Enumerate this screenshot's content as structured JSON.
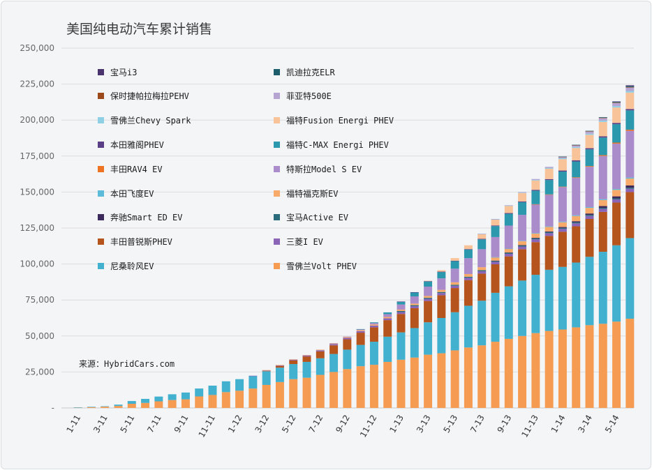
{
  "chart_data": {
    "type": "bar",
    "stacked": true,
    "title": "美国纯电动汽车累计销售",
    "source": "来源：HybridCars.com",
    "xlabel": "",
    "ylabel": "",
    "ylim": [
      0,
      250000
    ],
    "yticks": [
      "-",
      "25,000",
      "50,000",
      "75,000",
      "100,000",
      "125,000",
      "150,000",
      "175,000",
      "200,000",
      "225,000",
      "250,000"
    ],
    "grid": true,
    "legend_position": "top-left",
    "categories": [
      "1-11",
      "2-11",
      "3-11",
      "4-11",
      "5-11",
      "6-11",
      "7-11",
      "8-11",
      "9-11",
      "10-11",
      "11-11",
      "12-11",
      "1-12",
      "2-12",
      "3-12",
      "4-12",
      "5-12",
      "6-12",
      "7-12",
      "8-12",
      "9-12",
      "10-12",
      "11-12",
      "12-12",
      "1-13",
      "2-13",
      "3-13",
      "4-13",
      "5-13",
      "6-13",
      "7-13",
      "8-13",
      "9-13",
      "10-13",
      "11-13",
      "12-13",
      "1-14",
      "2-14",
      "3-14",
      "4-14",
      "5-14",
      "6-14"
    ],
    "xtick_labels": [
      "1-11",
      "3-11",
      "5-11",
      "7-11",
      "9-11",
      "11-11",
      "1-12",
      "3-12",
      "5-12",
      "7-12",
      "9-12",
      "11-12",
      "1-13",
      "3-13",
      "5-13",
      "7-13",
      "9-13",
      "11-13",
      "1-14",
      "3-14",
      "5-14"
    ],
    "series": [
      {
        "name": "雪佛兰Volt PHEV",
        "color": "#f59b52",
        "values": [
          300,
          600,
          900,
          1400,
          2900,
          3500,
          4600,
          5500,
          6000,
          8000,
          9000,
          11000,
          12000,
          13500,
          16000,
          18000,
          20000,
          21000,
          23000,
          25000,
          27000,
          29000,
          30000,
          32000,
          33500,
          35000,
          37000,
          38000,
          40000,
          42000,
          43500,
          46000,
          48000,
          50000,
          52000,
          53500,
          54500,
          56000,
          57500,
          58500,
          60000,
          62000
        ]
      },
      {
        "name": "尼桑聆风EV",
        "color": "#42b0cf",
        "values": [
          100,
          200,
          300,
          900,
          1900,
          2800,
          3300,
          4000,
          4700,
          5500,
          6500,
          7500,
          8000,
          8700,
          9500,
          10000,
          10500,
          11000,
          11500,
          12500,
          13500,
          14800,
          16000,
          17500,
          19000,
          20500,
          22500,
          24500,
          26500,
          29000,
          31000,
          34000,
          36500,
          38500,
          40500,
          42500,
          43500,
          45000,
          47500,
          50000,
          53000,
          56000
        ]
      },
      {
        "name": "丰田普锐斯PHEV",
        "color": "#b5541c",
        "values": [
          0,
          0,
          0,
          0,
          0,
          0,
          0,
          0,
          0,
          0,
          0,
          0,
          0,
          0,
          300,
          1200,
          2500,
          3800,
          4800,
          6000,
          7200,
          8500,
          10000,
          11500,
          12800,
          13800,
          14800,
          15800,
          16800,
          17800,
          18800,
          19800,
          20800,
          21800,
          22700,
          23500,
          24400,
          25200,
          26300,
          27700,
          29700,
          32000
        ]
      },
      {
        "name": "三菱I EV",
        "color": "#8a64b6",
        "values": [
          0,
          0,
          0,
          0,
          0,
          0,
          0,
          0,
          0,
          0,
          0,
          0,
          0,
          200,
          400,
          500,
          600,
          700,
          800,
          900,
          1000,
          1100,
          1200,
          1300,
          1350,
          1400,
          1500,
          1550,
          1600,
          1650,
          1700,
          1750,
          1800,
          1850,
          1900,
          1950,
          2000,
          2050,
          2100,
          2150,
          2200,
          2250
        ]
      },
      {
        "name": "宝马Active EV",
        "color": "#2a6b7c",
        "values": [
          0,
          0,
          0,
          0,
          0,
          0,
          0,
          0,
          0,
          0,
          0,
          0,
          0,
          0,
          0,
          0,
          0,
          0,
          0,
          0,
          0,
          0,
          0,
          0,
          700,
          700,
          700,
          700,
          700,
          700,
          700,
          700,
          700,
          700,
          700,
          700,
          700,
          700,
          700,
          700,
          700,
          700
        ]
      },
      {
        "name": "奔驰Smart ED EV",
        "color": "#3d2a5c",
        "values": [
          0,
          0,
          0,
          0,
          0,
          0,
          0,
          0,
          0,
          0,
          0,
          0,
          0,
          0,
          0,
          0,
          0,
          0,
          0,
          0,
          0,
          0,
          0,
          0,
          0,
          0,
          0,
          0,
          0,
          0,
          0,
          100,
          200,
          300,
          400,
          500,
          600,
          800,
          1000,
          1200,
          1400,
          1600
        ]
      },
      {
        "name": "福特福克斯EV",
        "color": "#f7aa6a",
        "values": [
          0,
          0,
          0,
          0,
          0,
          0,
          0,
          0,
          0,
          0,
          0,
          0,
          0,
          0,
          100,
          150,
          200,
          300,
          400,
          500,
          600,
          700,
          800,
          900,
          1000,
          1100,
          1300,
          1500,
          1700,
          1900,
          2100,
          2300,
          2500,
          2700,
          2900,
          3100,
          3300,
          3600,
          3900,
          4200,
          4500,
          4800
        ]
      },
      {
        "name": "本田飞度EV",
        "color": "#5bbbd9",
        "values": [
          0,
          0,
          0,
          0,
          0,
          0,
          0,
          0,
          0,
          0,
          0,
          0,
          0,
          0,
          0,
          0,
          0,
          0,
          0,
          0,
          0,
          0,
          0,
          0,
          0,
          0,
          0,
          0,
          0,
          0,
          0,
          100,
          200,
          300,
          350,
          400,
          450,
          500,
          550,
          600,
          650,
          700
        ]
      },
      {
        "name": "特斯拉Model S EV",
        "color": "#a98cc9",
        "values": [
          0,
          0,
          0,
          0,
          0,
          0,
          0,
          0,
          0,
          0,
          0,
          0,
          0,
          0,
          0,
          0,
          0,
          0,
          0,
          100,
          300,
          600,
          1000,
          2000,
          3500,
          5000,
          6500,
          8000,
          9500,
          11000,
          12500,
          14000,
          16000,
          18000,
          20000,
          22000,
          24000,
          26000,
          28000,
          30000,
          31500,
          32500
        ]
      },
      {
        "name": "丰田RAV4 EV",
        "color": "#ee7322",
        "values": [
          0,
          0,
          0,
          0,
          0,
          0,
          0,
          0,
          0,
          0,
          0,
          0,
          0,
          0,
          0,
          0,
          0,
          0,
          0,
          0,
          0,
          0,
          0,
          0,
          0,
          0,
          0,
          0,
          0,
          0,
          0,
          0,
          0,
          0,
          100,
          200,
          300,
          400,
          500,
          600,
          700,
          800
        ]
      },
      {
        "name": "福特C-MAX Energi PHEV",
        "color": "#2b98ad",
        "values": [
          0,
          0,
          0,
          0,
          0,
          0,
          0,
          0,
          0,
          0,
          0,
          0,
          0,
          0,
          0,
          0,
          0,
          0,
          0,
          0,
          0,
          100,
          500,
          1200,
          2000,
          2800,
          3600,
          4400,
          5200,
          6000,
          6800,
          7600,
          8200,
          8800,
          9400,
          10000,
          10500,
          11000,
          11600,
          12200,
          12800,
          13400
        ]
      },
      {
        "name": "本田雅阁PHEV",
        "color": "#5a3f86",
        "values": [
          0,
          0,
          0,
          0,
          0,
          0,
          0,
          0,
          0,
          0,
          0,
          0,
          0,
          0,
          0,
          0,
          0,
          0,
          0,
          0,
          0,
          0,
          0,
          0,
          100,
          150,
          200,
          250,
          300,
          350,
          400,
          450,
          500,
          550,
          600,
          650,
          700,
          750,
          800,
          850,
          900,
          950
        ]
      },
      {
        "name": "福特Fusion Energi PHEV",
        "color": "#f9c39a",
        "values": [
          0,
          0,
          0,
          0,
          0,
          0,
          0,
          0,
          0,
          0,
          0,
          0,
          0,
          0,
          0,
          0,
          0,
          0,
          0,
          0,
          0,
          0,
          0,
          0,
          0,
          0,
          300,
          1000,
          1800,
          2600,
          3400,
          4200,
          5000,
          5800,
          6500,
          7200,
          7900,
          8600,
          9300,
          10000,
          10700,
          11400
        ]
      },
      {
        "name": "雪佛兰Chevy Spark",
        "color": "#8fd0e4",
        "values": [
          0,
          0,
          0,
          0,
          0,
          0,
          0,
          0,
          0,
          0,
          0,
          0,
          0,
          0,
          0,
          0,
          0,
          0,
          0,
          0,
          0,
          0,
          0,
          0,
          0,
          0,
          0,
          0,
          0,
          0,
          50,
          100,
          200,
          300,
          400,
          500,
          600,
          700,
          800,
          900,
          1000,
          1100
        ]
      },
      {
        "name": "菲亚特500E",
        "color": "#b6a5d3",
        "values": [
          0,
          0,
          0,
          0,
          0,
          0,
          0,
          0,
          0,
          0,
          0,
          0,
          0,
          0,
          0,
          0,
          0,
          0,
          0,
          0,
          0,
          0,
          0,
          0,
          0,
          0,
          0,
          0,
          0,
          0,
          100,
          200,
          300,
          400,
          600,
          800,
          1000,
          1200,
          1500,
          1800,
          2100,
          2400
        ]
      },
      {
        "name": "保时捷帕拉梅拉PEHV",
        "color": "#9c4a1c",
        "values": [
          0,
          0,
          0,
          0,
          0,
          0,
          0,
          0,
          0,
          0,
          0,
          0,
          0,
          0,
          0,
          0,
          0,
          0,
          0,
          0,
          0,
          0,
          0,
          0,
          0,
          0,
          0,
          0,
          0,
          0,
          0,
          0,
          0,
          0,
          0,
          0,
          100,
          150,
          200,
          250,
          300,
          350
        ]
      },
      {
        "name": "凯迪拉克ELR",
        "color": "#1e5e6c",
        "values": [
          0,
          0,
          0,
          0,
          0,
          0,
          0,
          0,
          0,
          0,
          0,
          0,
          0,
          0,
          0,
          0,
          0,
          0,
          0,
          0,
          0,
          0,
          0,
          0,
          0,
          0,
          0,
          0,
          0,
          0,
          0,
          0,
          0,
          0,
          0,
          0,
          100,
          200,
          300,
          400,
          500,
          600
        ]
      },
      {
        "name": "宝马i3",
        "color": "#4a3470",
        "values": [
          0,
          0,
          0,
          0,
          0,
          0,
          0,
          0,
          0,
          0,
          0,
          0,
          0,
          0,
          0,
          0,
          0,
          0,
          0,
          0,
          0,
          0,
          0,
          0,
          0,
          0,
          0,
          0,
          0,
          0,
          0,
          0,
          0,
          0,
          0,
          0,
          0,
          0,
          0,
          0,
          300,
          600
        ]
      }
    ]
  },
  "legend": {
    "left": [
      "宝马i3",
      "保时捷帕拉梅拉PEHV",
      "雪佛兰Chevy Spark",
      "本田雅阁PHEV",
      "丰田RAV4 EV",
      "本田飞度EV",
      "奔驰Smart ED EV",
      "丰田普锐斯PHEV",
      "尼桑聆风EV"
    ],
    "right": [
      "凯迪拉克ELR",
      "菲亚特500E",
      "福特Fusion Energi PHEV",
      "福特C-MAX Energi PHEV",
      "特斯拉Model S EV",
      "福特福克斯EV",
      "宝马Active EV",
      "三菱I EV",
      "雪佛兰Volt PHEV"
    ]
  }
}
